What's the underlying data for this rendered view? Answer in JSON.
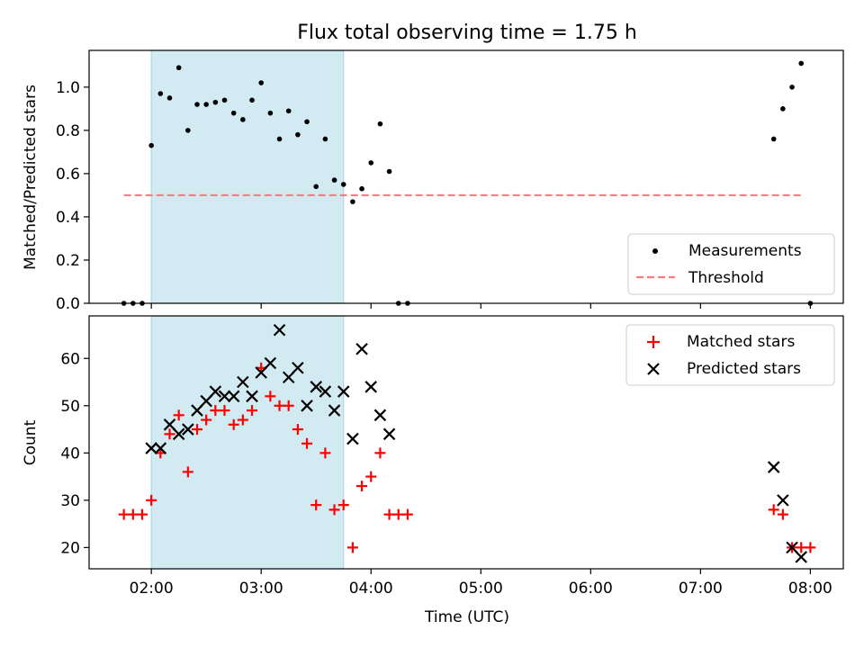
{
  "title": "Flux total observing time = 1.75 h",
  "colors": {
    "shade": "#add8e6",
    "measurement": "#000000",
    "threshold": "#ff7b7b",
    "matched": "#ff0000",
    "predicted": "#000000"
  },
  "chart_data": [
    {
      "type": "scatter",
      "ylabel": "Matched/Predicted stars",
      "xlim": [
        "01:26",
        "08:18"
      ],
      "ylim": [
        0,
        1.17
      ],
      "yticks": [
        "0.0",
        "0.2",
        "0.4",
        "0.6",
        "0.8",
        "1.0"
      ],
      "shaded_interval": [
        "02:00",
        "03:45"
      ],
      "legend_position": "lower right",
      "series": [
        {
          "name": "Measurements",
          "marker": "dot",
          "points": [
            [
              "01:45",
              0.0
            ],
            [
              "01:50",
              0.0
            ],
            [
              "01:55",
              0.0
            ],
            [
              "02:00",
              0.73
            ],
            [
              "02:05",
              0.97
            ],
            [
              "02:10",
              0.95
            ],
            [
              "02:15",
              1.09
            ],
            [
              "02:20",
              0.8
            ],
            [
              "02:25",
              0.92
            ],
            [
              "02:30",
              0.92
            ],
            [
              "02:35",
              0.93
            ],
            [
              "02:40",
              0.94
            ],
            [
              "02:45",
              0.88
            ],
            [
              "02:50",
              0.85
            ],
            [
              "02:55",
              0.94
            ],
            [
              "03:00",
              1.02
            ],
            [
              "03:05",
              0.88
            ],
            [
              "03:10",
              0.76
            ],
            [
              "03:15",
              0.89
            ],
            [
              "03:20",
              0.78
            ],
            [
              "03:25",
              0.84
            ],
            [
              "03:30",
              0.54
            ],
            [
              "03:35",
              0.76
            ],
            [
              "03:40",
              0.57
            ],
            [
              "03:45",
              0.55
            ],
            [
              "03:50",
              0.47
            ],
            [
              "03:55",
              0.53
            ],
            [
              "04:00",
              0.65
            ],
            [
              "04:05",
              0.83
            ],
            [
              "04:10",
              0.61
            ],
            [
              "04:15",
              0.0
            ],
            [
              "04:20",
              0.0
            ],
            [
              "07:40",
              0.76
            ],
            [
              "07:45",
              0.9
            ],
            [
              "07:50",
              1.0
            ],
            [
              "07:55",
              1.11
            ],
            [
              "08:00",
              0.0
            ]
          ]
        },
        {
          "name": "Threshold",
          "marker": "dashed-line",
          "points": [
            [
              "01:45",
              0.5
            ],
            [
              "07:55",
              0.5
            ]
          ]
        }
      ]
    },
    {
      "type": "scatter",
      "xlabel": "Time (UTC)",
      "ylabel": "Count",
      "xlim": [
        "01:26",
        "08:18"
      ],
      "ylim": [
        15.5,
        69
      ],
      "yticks": [
        "20",
        "30",
        "40",
        "50",
        "60"
      ],
      "xticks": [
        "02:00",
        "03:00",
        "04:00",
        "05:00",
        "06:00",
        "07:00",
        "08:00"
      ],
      "shaded_interval": [
        "02:00",
        "03:45"
      ],
      "legend_position": "upper right",
      "series": [
        {
          "name": "Matched stars",
          "marker": "plus",
          "points": [
            [
              "01:45",
              27
            ],
            [
              "01:50",
              27
            ],
            [
              "01:55",
              27
            ],
            [
              "02:00",
              30
            ],
            [
              "02:05",
              40
            ],
            [
              "02:10",
              44
            ],
            [
              "02:15",
              48
            ],
            [
              "02:20",
              36
            ],
            [
              "02:25",
              45
            ],
            [
              "02:30",
              47
            ],
            [
              "02:35",
              49
            ],
            [
              "02:40",
              49
            ],
            [
              "02:45",
              46
            ],
            [
              "02:50",
              47
            ],
            [
              "02:55",
              49
            ],
            [
              "03:00",
              58
            ],
            [
              "03:05",
              52
            ],
            [
              "03:10",
              50
            ],
            [
              "03:15",
              50
            ],
            [
              "03:20",
              45
            ],
            [
              "03:25",
              42
            ],
            [
              "03:30",
              29
            ],
            [
              "03:35",
              40
            ],
            [
              "03:40",
              28
            ],
            [
              "03:45",
              29
            ],
            [
              "03:50",
              20
            ],
            [
              "03:55",
              33
            ],
            [
              "04:00",
              35
            ],
            [
              "04:05",
              40
            ],
            [
              "04:10",
              27
            ],
            [
              "04:15",
              27
            ],
            [
              "04:20",
              27
            ],
            [
              "07:40",
              28
            ],
            [
              "07:45",
              27
            ],
            [
              "07:50",
              20
            ],
            [
              "07:55",
              20
            ],
            [
              "08:00",
              20
            ]
          ]
        },
        {
          "name": "Predicted stars",
          "marker": "x",
          "points": [
            [
              "02:00",
              41
            ],
            [
              "02:05",
              41
            ],
            [
              "02:10",
              46
            ],
            [
              "02:15",
              44
            ],
            [
              "02:20",
              45
            ],
            [
              "02:25",
              49
            ],
            [
              "02:30",
              51
            ],
            [
              "02:35",
              53
            ],
            [
              "02:40",
              52
            ],
            [
              "02:45",
              52
            ],
            [
              "02:50",
              55
            ],
            [
              "02:55",
              52
            ],
            [
              "03:00",
              57
            ],
            [
              "03:05",
              59
            ],
            [
              "03:10",
              66
            ],
            [
              "03:15",
              56
            ],
            [
              "03:20",
              58
            ],
            [
              "03:25",
              50
            ],
            [
              "03:30",
              54
            ],
            [
              "03:35",
              53
            ],
            [
              "03:40",
              49
            ],
            [
              "03:45",
              53
            ],
            [
              "03:50",
              43
            ],
            [
              "03:55",
              62
            ],
            [
              "04:00",
              54
            ],
            [
              "04:05",
              48
            ],
            [
              "04:10",
              44
            ],
            [
              "07:40",
              37
            ],
            [
              "07:45",
              30
            ],
            [
              "07:50",
              20
            ],
            [
              "07:55",
              18
            ]
          ]
        }
      ]
    }
  ]
}
